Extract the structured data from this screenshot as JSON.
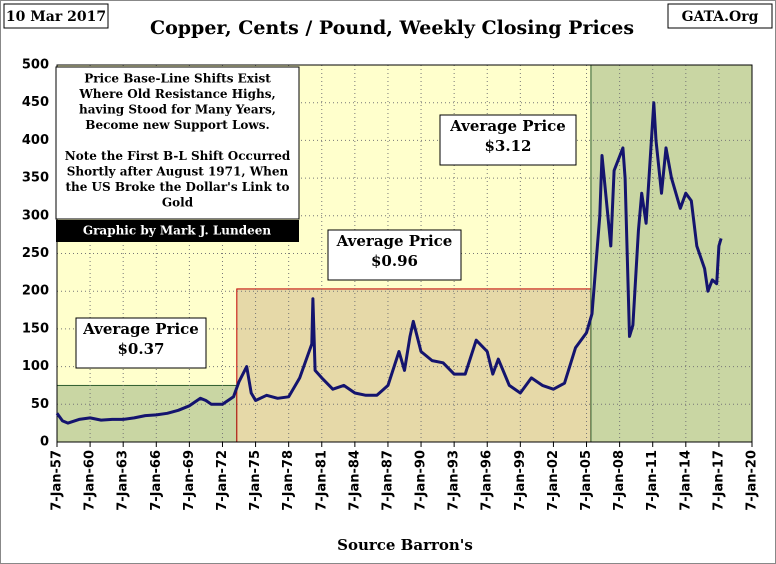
{
  "chart_data": {
    "type": "line",
    "title": "Copper, Cents / Pound, Weekly Closing Prices",
    "date_label": "10 Mar 2017",
    "source_label": "GATA.Org",
    "x_label": "Source Barron's",
    "color": "#14146e",
    "grid": true,
    "xlim": [
      1957,
      2020
    ],
    "ylim": [
      0,
      500
    ],
    "yticks": [
      0,
      50,
      100,
      150,
      200,
      250,
      300,
      350,
      400,
      450,
      500
    ],
    "xticks": [
      {
        "value": 1957,
        "label": "7-Jan-57"
      },
      {
        "value": 1960,
        "label": "7-Jan-60"
      },
      {
        "value": 1963,
        "label": "7-Jan-63"
      },
      {
        "value": 1966,
        "label": "7-Jan-66"
      },
      {
        "value": 1969,
        "label": "7-Jan-69"
      },
      {
        "value": 1972,
        "label": "7-Jan-72"
      },
      {
        "value": 1975,
        "label": "7-Jan-75"
      },
      {
        "value": 1978,
        "label": "7-Jan-78"
      },
      {
        "value": 1981,
        "label": "7-Jan-81"
      },
      {
        "value": 1984,
        "label": "7-Jan-84"
      },
      {
        "value": 1987,
        "label": "7-Jan-87"
      },
      {
        "value": 1990,
        "label": "7-Jan-90"
      },
      {
        "value": 1993,
        "label": "7-Jan-93"
      },
      {
        "value": 1996,
        "label": "7-Jan-96"
      },
      {
        "value": 1999,
        "label": "7-Jan-99"
      },
      {
        "value": 2002,
        "label": "7-Jan-02"
      },
      {
        "value": 2005,
        "label": "7-Jan-05"
      },
      {
        "value": 2008,
        "label": "7-Jan-08"
      },
      {
        "value": 2011,
        "label": "7-Jan-11"
      },
      {
        "value": 2014,
        "label": "7-Jan-14"
      },
      {
        "value": 2017,
        "label": "7-Jan-17"
      },
      {
        "value": 2020,
        "label": "7-Jan-20"
      }
    ],
    "regions": [
      {
        "x": [
          1957,
          1973.3
        ],
        "top": 75,
        "color": "#c9d6a3",
        "border": "#2e5e2e"
      },
      {
        "x": [
          1973.3,
          2005.4
        ],
        "top": 203,
        "color": "#e6d9a8",
        "border": "#c00000"
      },
      {
        "x": [
          2005.4,
          2020
        ],
        "top": 500,
        "color": "#c9d6a3",
        "border": "#2e5e2e"
      }
    ],
    "annotations": [
      {
        "lines": [
          "Average Price",
          "$0.37"
        ]
      },
      {
        "lines": [
          "Average Price",
          "$0.96"
        ]
      },
      {
        "lines": [
          "Average Price",
          "$3.12"
        ]
      },
      {
        "lines": [
          "Price Base-Line Shifts Exist",
          "Where Old Resistance Highs,",
          "having Stood for Many Years,",
          "Become new Support Lows.",
          "",
          "Note the First B-L Shift Occurred",
          "Shortly after August 1971, When",
          "the US Broke the Dollar's Link to",
          "Gold"
        ]
      }
    ],
    "credit": "Graphic by Mark J. Lundeen",
    "x": [
      1957,
      1957.5,
      1958,
      1959,
      1960,
      1961,
      1962,
      1963,
      1964,
      1965,
      1966,
      1967,
      1968,
      1969,
      1970,
      1970.5,
      1971,
      1972,
      1973,
      1973.5,
      1974.2,
      1974.6,
      1975,
      1976,
      1977,
      1978,
      1979,
      1980.1,
      1980.2,
      1980.4,
      1981,
      1982,
      1983,
      1984,
      1985,
      1986,
      1987,
      1988,
      1988.5,
      1989,
      1989.3,
      1990,
      1991,
      1992,
      1993,
      1994,
      1995,
      1996,
      1996.5,
      1997,
      1998,
      1999,
      2000,
      2001,
      2002,
      2003,
      2004,
      2005,
      2005.5,
      2006.2,
      2006.4,
      2006.8,
      2007.2,
      2007.5,
      2008.3,
      2008.5,
      2008.9,
      2009.2,
      2009.7,
      2010,
      2010.4,
      2011.1,
      2011.3,
      2011.8,
      2012.2,
      2012.7,
      2013.5,
      2014,
      2014.5,
      2015,
      2015.7,
      2016,
      2016.4,
      2016.8,
      2017.0,
      2017.2
    ],
    "values": [
      38,
      28,
      25,
      30,
      32,
      29,
      30,
      30,
      32,
      35,
      36,
      38,
      42,
      48,
      58,
      55,
      50,
      50,
      60,
      80,
      100,
      65,
      55,
      62,
      58,
      60,
      85,
      130,
      190,
      95,
      85,
      70,
      75,
      65,
      62,
      62,
      75,
      120,
      95,
      140,
      160,
      120,
      108,
      105,
      90,
      90,
      135,
      120,
      90,
      110,
      75,
      65,
      85,
      75,
      70,
      78,
      125,
      145,
      170,
      300,
      380,
      320,
      260,
      360,
      390,
      350,
      140,
      155,
      280,
      330,
      290,
      450,
      400,
      330,
      390,
      350,
      310,
      330,
      320,
      260,
      230,
      200,
      215,
      210,
      260,
      270
    ]
  }
}
